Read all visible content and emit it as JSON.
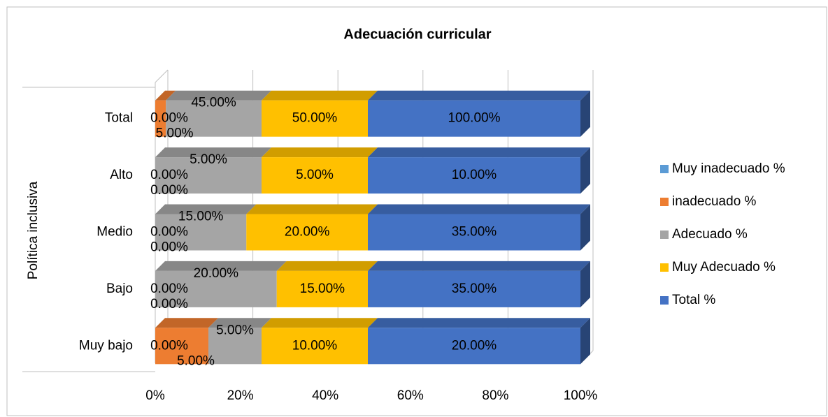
{
  "chart_data": {
    "type": "bar",
    "orientation": "horizontal",
    "stacked": "percent",
    "title": "Adecuación curricular",
    "y_axis_label": "Política inclusiva",
    "categories": [
      "Muy bajo",
      "Bajo",
      "Medio",
      "Alto",
      "Total"
    ],
    "series": [
      {
        "name": "Muy inadecuado %",
        "color": "#5b9bd5",
        "values": [
          0,
          0,
          0,
          0,
          0
        ],
        "value_labels": [
          "0.00%",
          "0.00%",
          "0.00%",
          "0.00%",
          "0.00%"
        ]
      },
      {
        "name": "inadecuado %",
        "color": "#ed7d31",
        "values": [
          5,
          0,
          0,
          0,
          5
        ],
        "value_labels": [
          "5.00%",
          "0.00%",
          "0.00%",
          "0.00%",
          "5.00%"
        ]
      },
      {
        "name": "Adecuado %",
        "color": "#a5a5a5",
        "values": [
          5,
          20,
          15,
          5,
          45
        ],
        "value_labels": [
          "5.00%",
          "20.00%",
          "15.00%",
          "5.00%",
          "45.00%"
        ]
      },
      {
        "name": "Muy Adecuado %",
        "color": "#ffc000",
        "values": [
          10,
          15,
          20,
          5,
          50
        ],
        "value_labels": [
          "10.00%",
          "15.00%",
          "20.00%",
          "5.00%",
          "50.00%"
        ]
      },
      {
        "name": "Total %",
        "color": "#4472c4",
        "values": [
          20,
          35,
          35,
          10,
          100
        ],
        "value_labels": [
          "20.00%",
          "35.00%",
          "35.00%",
          "10.00%",
          "100.00%"
        ]
      }
    ],
    "xlim": [
      0,
      100
    ],
    "xticks": [
      {
        "value": 0,
        "label": "0%"
      },
      {
        "value": 20,
        "label": "20%"
      },
      {
        "value": 40,
        "label": "40%"
      },
      {
        "value": 60,
        "label": "60%"
      },
      {
        "value": 80,
        "label": "80%"
      },
      {
        "value": 100,
        "label": "100%"
      }
    ],
    "grid": true,
    "legend": "right"
  }
}
